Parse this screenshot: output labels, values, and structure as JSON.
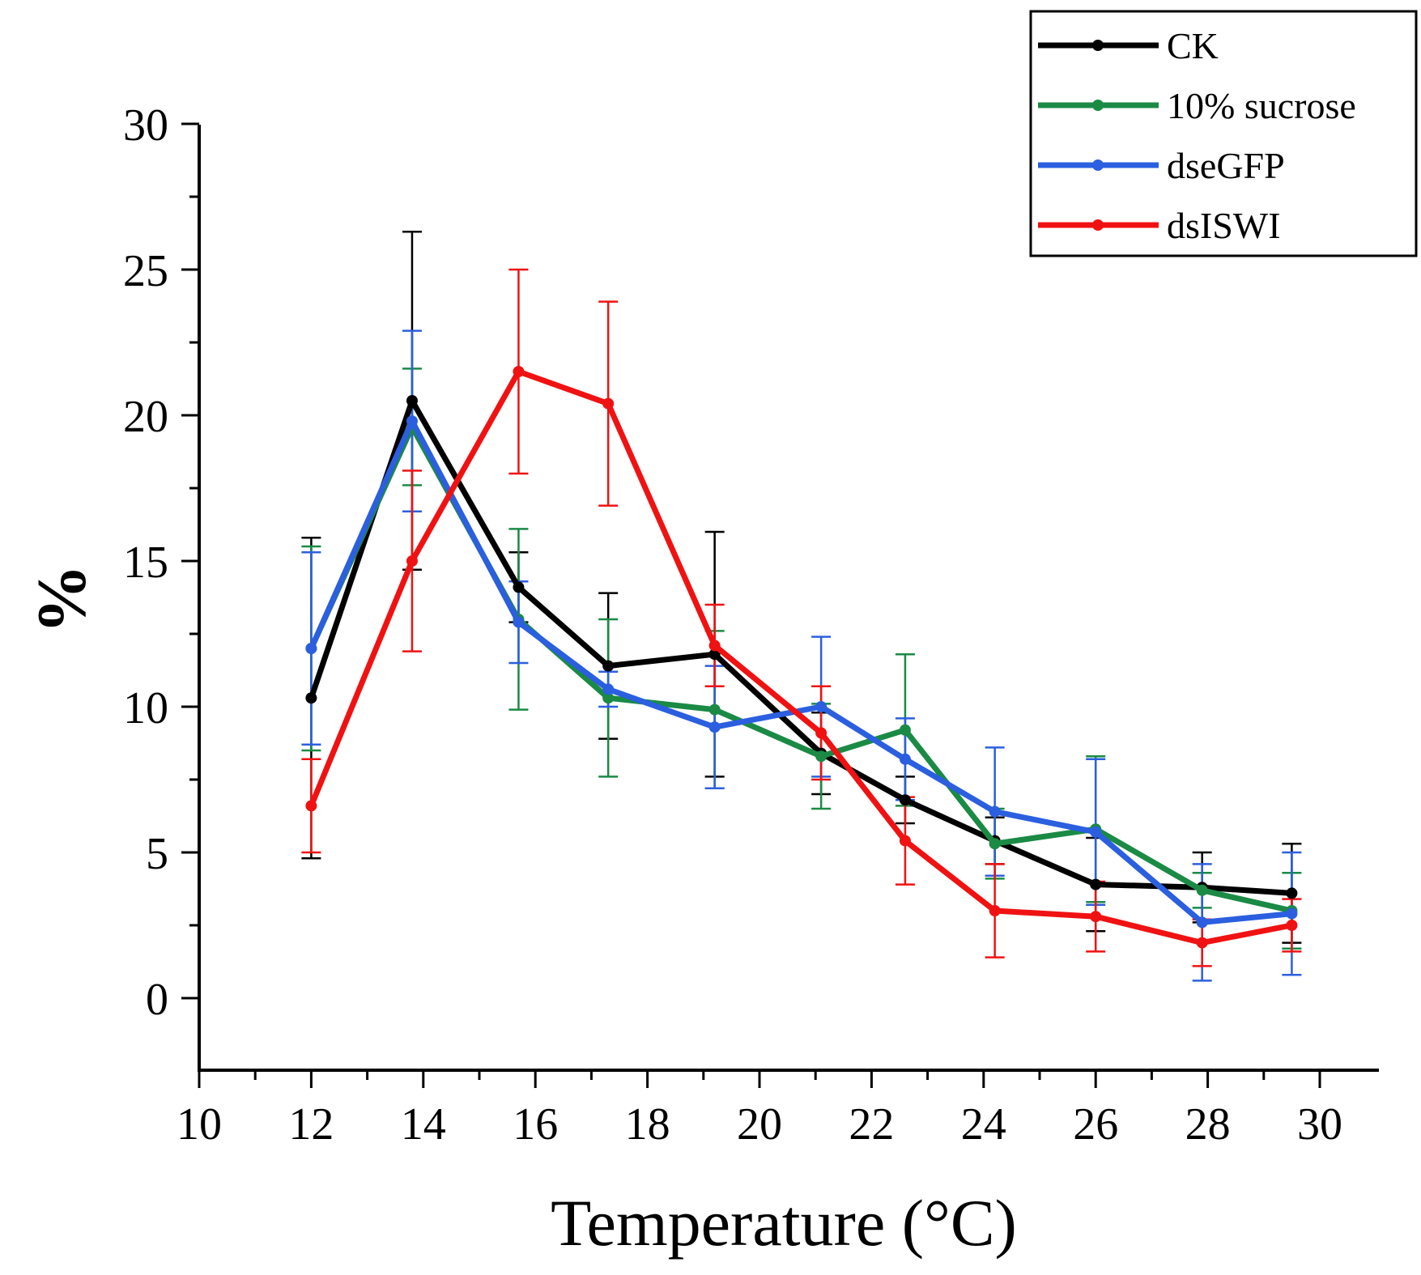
{
  "chart_data": {
    "type": "line",
    "xlabel": "Temperature (°C)",
    "ylabel": "%",
    "xlim": [
      10,
      31
    ],
    "ylim": [
      -2.5,
      30
    ],
    "xticks": [
      10,
      12,
      14,
      16,
      18,
      20,
      22,
      24,
      26,
      28,
      30
    ],
    "yticks": [
      0,
      5,
      10,
      15,
      20,
      25,
      30
    ],
    "xtick_labels": [
      "10",
      "12",
      "14",
      "16",
      "18",
      "20",
      "22",
      "24",
      "26",
      "28",
      "30"
    ],
    "ytick_labels": [
      "0",
      "5",
      "10",
      "15",
      "20",
      "25",
      "30"
    ],
    "legend_position": "top-right",
    "series": [
      {
        "name": "CK",
        "color": "#000000",
        "x": [
          12,
          13.8,
          15.7,
          17.3,
          19.2,
          21.1,
          22.6,
          24.2,
          26,
          27.9,
          29.5
        ],
        "values": [
          10.3,
          20.5,
          14.1,
          11.4,
          11.8,
          8.4,
          6.8,
          5.4,
          3.9,
          3.8,
          3.6
        ],
        "err": [
          5.5,
          5.8,
          1.2,
          2.5,
          4.2,
          1.4,
          0.8,
          0.8,
          1.6,
          1.2,
          1.7
        ]
      },
      {
        "name": "10% sucrose",
        "color": "#1a8a45",
        "x": [
          12,
          13.8,
          15.7,
          17.3,
          19.2,
          21.1,
          22.6,
          24.2,
          26,
          27.9,
          29.5
        ],
        "values": [
          12.0,
          19.6,
          13.0,
          10.3,
          9.9,
          8.3,
          9.2,
          5.3,
          5.8,
          3.7,
          3.0
        ],
        "err": [
          3.5,
          2.0,
          3.1,
          2.7,
          2.7,
          1.8,
          2.6,
          1.2,
          2.5,
          0.6,
          1.3
        ]
      },
      {
        "name": "dseGFP",
        "color": "#2b5fdf",
        "x": [
          12,
          13.8,
          15.7,
          17.3,
          19.2,
          21.1,
          22.6,
          24.2,
          26,
          27.9,
          29.5
        ],
        "values": [
          12.0,
          19.8,
          12.9,
          10.6,
          9.3,
          10.0,
          8.2,
          6.4,
          5.7,
          2.6,
          2.9
        ],
        "err": [
          3.3,
          3.1,
          1.4,
          0.6,
          2.1,
          2.4,
          1.4,
          2.2,
          2.5,
          2.0,
          2.1
        ]
      },
      {
        "name": "dsISWI",
        "color": "#f01212",
        "x": [
          12,
          13.8,
          15.7,
          17.3,
          19.2,
          21.1,
          22.6,
          24.2,
          26,
          27.9,
          29.5
        ],
        "values": [
          6.6,
          15.0,
          21.5,
          20.4,
          12.1,
          9.1,
          5.4,
          3.0,
          2.8,
          1.9,
          2.5
        ],
        "err": [
          1.6,
          3.1,
          3.5,
          3.5,
          1.4,
          1.6,
          1.5,
          1.6,
          1.2,
          0.8,
          0.9
        ]
      }
    ]
  }
}
